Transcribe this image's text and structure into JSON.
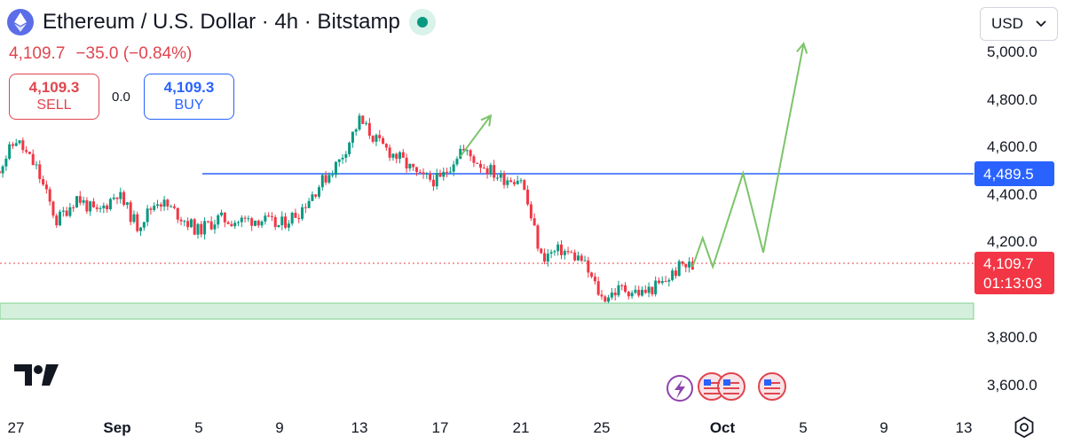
{
  "header": {
    "title": "Ethereum / U.S. Dollar · 4h · Bitstamp",
    "price": "4,109.7",
    "change": "−35.0",
    "change_pct": "(−0.84%)"
  },
  "trade": {
    "sell_price": "4,109.3",
    "sell_label": "SELL",
    "spread": "0.0",
    "buy_price": "4,109.3",
    "buy_label": "BUY"
  },
  "currency_selector": {
    "value": "USD"
  },
  "colors": {
    "up": "#089981",
    "down": "#f23645",
    "resistance": "#2962ff",
    "support_zone": "#b9e5c6",
    "projection": "#7cc46a"
  },
  "icons": [
    "ethereum-icon",
    "live-status-icon",
    "chevron-down-icon",
    "tradingview-logo",
    "event-flag-icon",
    "gear-icon"
  ],
  "chart_data": {
    "type": "candlestick",
    "symbol": "ETHUSD",
    "interval": "4h",
    "y_axis": {
      "ticks": [
        "5,000.0",
        "4,800.0",
        "4,600.0",
        "4,400.0",
        "4,200.0",
        "3,800.0",
        "3,600.0"
      ],
      "range": [
        3550,
        5050
      ]
    },
    "x_axis": {
      "ticks": [
        "27",
        "Sep",
        "5",
        "9",
        "13",
        "17",
        "21",
        "25",
        "Oct",
        "5",
        "9",
        "13"
      ]
    },
    "resistance_level": {
      "value": 4489.5,
      "label": "4,489.5"
    },
    "current_price": {
      "value": 4109.7,
      "label": "4,109.7",
      "countdown": "01:13:03"
    },
    "support_zone": [
      3920,
      3995
    ],
    "price_path": [
      [
        "Aug 26",
        4500
      ],
      [
        "Aug 27",
        4640
      ],
      [
        "Aug 28",
        4520
      ],
      [
        "Aug 29",
        4300
      ],
      [
        "Aug 30",
        4400
      ],
      [
        "Aug 31",
        4330
      ],
      [
        "Sep 1",
        4420
      ],
      [
        "Sep 2",
        4280
      ],
      [
        "Sep 3",
        4390
      ],
      [
        "Sep 4",
        4330
      ],
      [
        "Sep 5",
        4260
      ],
      [
        "Sep 6",
        4310
      ],
      [
        "Sep 7",
        4300
      ],
      [
        "Sep 8",
        4310
      ],
      [
        "Sep 9",
        4280
      ],
      [
        "Sep 10",
        4340
      ],
      [
        "Sep 11",
        4450
      ],
      [
        "Sep 12",
        4550
      ],
      [
        "Sep 13",
        4720
      ],
      [
        "Sep 14",
        4620
      ],
      [
        "Sep 15",
        4560
      ],
      [
        "Sep 16",
        4480
      ],
      [
        "Sep 17",
        4470
      ],
      [
        "Sep 18",
        4600
      ],
      [
        "Sep 19",
        4540
      ],
      [
        "Sep 20",
        4480
      ],
      [
        "Sep 21",
        4480
      ],
      [
        "Sep 22",
        4150
      ],
      [
        "Sep 23",
        4180
      ],
      [
        "Sep 24",
        4140
      ],
      [
        "Sep 25",
        3980
      ],
      [
        "Sep 26",
        4020
      ],
      [
        "Sep 27",
        4000
      ],
      [
        "Sep 28",
        4040
      ],
      [
        "Sep 29",
        4120
      ],
      [
        "Sep 29 12:00",
        4110
      ]
    ],
    "projections": [
      {
        "name": "earlier projection",
        "points": [
          [
            "Sep 18",
            4570
          ],
          [
            "Sep 19 12:00",
            4740
          ]
        ]
      },
      {
        "name": "current projection",
        "points": [
          [
            "Sep 29 12:00",
            4110
          ],
          [
            "Sep 30",
            4230
          ],
          [
            "Sep 30 12:00",
            4110
          ],
          [
            "Oct 2",
            4500
          ],
          [
            "Oct 3",
            4170
          ],
          [
            "Oct 5",
            5040
          ]
        ]
      }
    ]
  }
}
